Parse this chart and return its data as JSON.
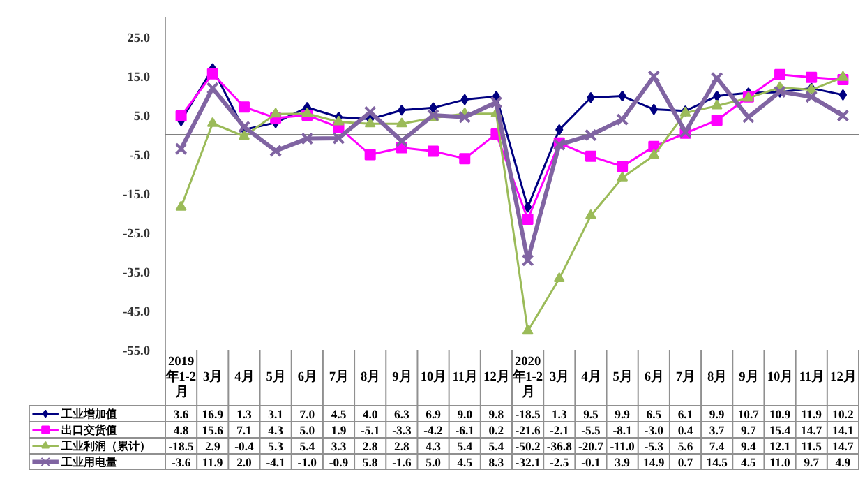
{
  "chart_data": {
    "type": "line",
    "categories": [
      "2019年1-2月",
      "3月",
      "4月",
      "5月",
      "6月",
      "7月",
      "8月",
      "9月",
      "10月",
      "11月",
      "12月",
      "2020年1-2月",
      "3月",
      "4月",
      "5月",
      "6月",
      "7月",
      "8月",
      "9月",
      "10月",
      "11月",
      "12月"
    ],
    "series": [
      {
        "name": "工业增加值",
        "color": "#000080",
        "marker": "diamond",
        "values": [
          3.6,
          16.9,
          1.3,
          3.1,
          7.0,
          4.5,
          4.0,
          6.3,
          6.9,
          9.0,
          9.8,
          -18.5,
          1.3,
          9.5,
          9.9,
          6.5,
          6.1,
          9.9,
          10.7,
          10.9,
          11.9,
          10.2
        ],
        "value_labels": [
          "3.6",
          "16.9",
          "1.3",
          "3.1",
          "7.0",
          "4.5",
          "4.0",
          "6.3",
          "6.9",
          "9.0",
          "9.8",
          "-18.5",
          "1.3",
          "9.5",
          "9.9",
          "6.5",
          "6.1",
          "9.9",
          "10.7",
          "10.9",
          "11.9",
          "10.2"
        ]
      },
      {
        "name": "出口交货值",
        "color": "#ff00ff",
        "marker": "square",
        "values": [
          4.8,
          15.6,
          7.1,
          4.3,
          5.0,
          1.9,
          -5.1,
          -3.3,
          -4.2,
          -6.1,
          0.2,
          -21.6,
          -2.1,
          -5.5,
          -8.1,
          -3.0,
          0.4,
          3.7,
          9.7,
          15.4,
          14.7,
          14.1
        ],
        "value_labels": [
          "4.8",
          "15.6",
          "7.1",
          "4.3",
          "5.0",
          "1.9",
          "-5.1",
          "-3.3",
          "-4.2",
          "-6.1",
          "0.2",
          "-21.6",
          "-2.1",
          "-5.5",
          "-8.1",
          "-3.0",
          "0.4",
          "3.7",
          "9.7",
          "15.4",
          "14.7",
          "14.1"
        ]
      },
      {
        "name": "工业利润（累计）",
        "color": "#9bbb59",
        "marker": "triangle",
        "values": [
          -18.5,
          2.9,
          -0.4,
          5.3,
          5.4,
          3.3,
          2.8,
          2.8,
          4.3,
          5.4,
          5.4,
          -50.2,
          -36.8,
          -20.7,
          -11.0,
          -5.3,
          5.6,
          7.4,
          9.4,
          12.1,
          11.5,
          14.7
        ],
        "value_labels": [
          "-18.5",
          "2.9",
          "-0.4",
          "5.3",
          "5.4",
          "3.3",
          "2.8",
          "2.8",
          "4.3",
          "5.4",
          "5.4",
          "-50.2",
          "-36.8",
          "-20.7",
          "-11.0",
          "-5.3",
          "5.6",
          "7.4",
          "9.4",
          "12.1",
          "11.5",
          "14.7"
        ]
      },
      {
        "name": "工业用电量",
        "color": "#8064a2",
        "marker": "cross",
        "values": [
          -3.6,
          11.9,
          2.0,
          -4.1,
          -1.0,
          -0.9,
          5.8,
          -1.6,
          5.0,
          4.5,
          8.3,
          -32.1,
          -2.5,
          -0.1,
          3.9,
          14.9,
          0.7,
          14.5,
          4.5,
          11.0,
          9.7,
          4.9
        ],
        "value_labels": [
          "-3.6",
          "11.9",
          "2.0",
          "-4.1",
          "-1.0",
          "-0.9",
          "5.8",
          "-1.6",
          "5.0",
          "4.5",
          "8.3",
          "-32.1",
          "-2.5",
          "-0.1",
          "3.9",
          "14.9",
          "0.7",
          "14.5",
          "4.5",
          "11.0",
          "9.7",
          "4.9"
        ]
      }
    ],
    "ylim": [
      -55,
      30
    ],
    "yticks": [
      {
        "value": 25,
        "label": "25.0"
      },
      {
        "value": 15,
        "label": "15.0"
      },
      {
        "value": 5,
        "label": "5.0"
      },
      {
        "value": -5,
        "label": "-5.0"
      },
      {
        "value": -15,
        "label": "-15.0"
      },
      {
        "value": -25,
        "label": "-25.0"
      },
      {
        "value": -35,
        "label": "-35.0"
      },
      {
        "value": -45,
        "label": "-45.0"
      },
      {
        "value": -55,
        "label": "-55.0"
      }
    ],
    "ref_lines": [
      {
        "axis": "y",
        "value": 0,
        "color": "#808080"
      }
    ],
    "legend": "bottom left",
    "grid": false,
    "line_style": "solid"
  }
}
